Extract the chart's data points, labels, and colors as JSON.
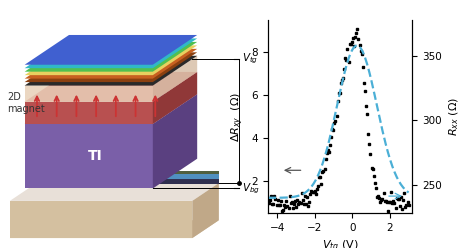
{
  "graph_xlim": [
    -4.5,
    3.2
  ],
  "graph_ylim": [
    0.5,
    9.5
  ],
  "graph_ylim2": [
    228,
    378
  ],
  "xticks": [
    -4,
    -2,
    0,
    2
  ],
  "yticks": [
    2,
    4,
    6,
    8
  ],
  "yticks2": [
    250,
    300,
    350
  ],
  "peak_x": 0.25,
  "line_color_black": "#1a1a1a",
  "line_color_blue": "#4bafd6",
  "base_color": "#d4c0a0",
  "base_color2": "#e8e0d8",
  "ti_front": "#7a5fa8",
  "ti_top": "#9878c0",
  "ti_right": "#5a4080",
  "mag_front": "#b85050",
  "mag_top": "#c86060",
  "mag_right": "#903838",
  "spacer_color": "#e8d0b8",
  "gate_colors": [
    "#2a2a2a",
    "#8b4010",
    "#c86020",
    "#e8d060",
    "#50c050",
    "#30b8c8",
    "#4060d0"
  ],
  "bot_blue": "#5090c0",
  "bot_dark": "#303050",
  "bot_green": "#506040"
}
